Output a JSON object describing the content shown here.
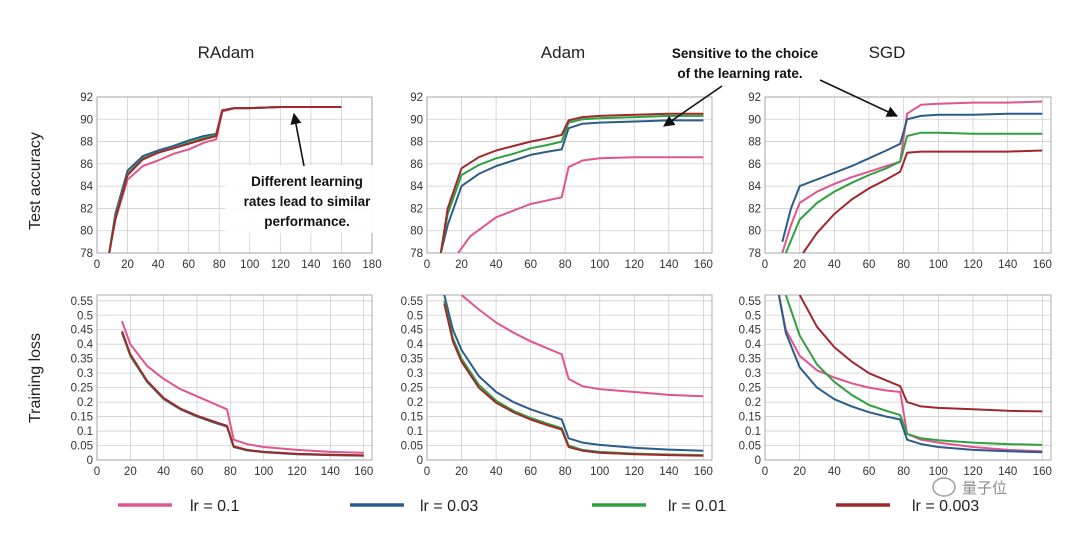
{
  "ylabels": {
    "top": "Test accuracy",
    "bottom": "Training loss"
  },
  "legend": [
    {
      "label": "lr = 0.1",
      "color": "#e05590"
    },
    {
      "label": "lr = 0.03",
      "color": "#2c5d8a"
    },
    {
      "label": "lr = 0.01",
      "color": "#30a040"
    },
    {
      "label": "lr = 0.003",
      "color": "#a0282c"
    }
  ],
  "watermark": "量子位",
  "annotations": [
    {
      "lines": [
        "Different learning",
        "rates lead to similar",
        "performance."
      ]
    },
    {
      "lines": [
        "Sensitive to the choice",
        "of the learning rate."
      ]
    }
  ],
  "chart_data": [
    {
      "type": "line",
      "title": "RAdam",
      "xlabel": "",
      "ylabel": "Test accuracy",
      "xlim": [
        0,
        180
      ],
      "ylim": [
        78,
        92
      ],
      "xticks": [
        0,
        20,
        40,
        60,
        80,
        100,
        120,
        140,
        160,
        180
      ],
      "yticks": [
        78,
        80,
        82,
        84,
        86,
        88,
        90,
        92
      ],
      "grid": true,
      "series": [
        {
          "color": "#e05590",
          "x": [
            8,
            12,
            20,
            30,
            40,
            50,
            60,
            70,
            78,
            82,
            90,
            100,
            120,
            140,
            160
          ],
          "y": [
            78,
            81,
            84.6,
            85.8,
            86.3,
            86.9,
            87.3,
            87.9,
            88.2,
            90.7,
            91.0,
            91.0,
            91.1,
            91.1,
            91.1
          ]
        },
        {
          "color": "#2c5d8a",
          "x": [
            8,
            12,
            20,
            30,
            40,
            50,
            60,
            70,
            78,
            82,
            90,
            100,
            120,
            140,
            160
          ],
          "y": [
            78,
            81.5,
            85.4,
            86.7,
            87.2,
            87.6,
            88.1,
            88.5,
            88.7,
            90.8,
            91.0,
            91.0,
            91.1,
            91.1,
            91.1
          ]
        },
        {
          "color": "#30a040",
          "x": [
            8,
            12,
            20,
            30,
            40,
            50,
            60,
            70,
            78,
            82,
            90,
            100,
            120,
            140,
            160
          ],
          "y": [
            78,
            81.2,
            85.1,
            86.5,
            87.0,
            87.4,
            87.9,
            88.3,
            88.6,
            90.8,
            91.0,
            91.0,
            91.1,
            91.1,
            91.1
          ]
        },
        {
          "color": "#a0282c",
          "x": [
            8,
            12,
            20,
            30,
            40,
            50,
            60,
            70,
            78,
            82,
            90,
            100,
            120,
            140,
            160
          ],
          "y": [
            78,
            81.0,
            85.0,
            86.4,
            87.0,
            87.4,
            87.8,
            88.2,
            88.5,
            90.8,
            91.0,
            91.0,
            91.1,
            91.1,
            91.1
          ]
        }
      ]
    },
    {
      "type": "line",
      "title": "Adam",
      "xlabel": "",
      "ylabel": "",
      "xlim": [
        0,
        165
      ],
      "ylim": [
        78,
        92
      ],
      "xticks": [
        0,
        20,
        40,
        60,
        80,
        100,
        120,
        140,
        160
      ],
      "yticks": [
        78,
        80,
        82,
        84,
        86,
        88,
        90,
        92
      ],
      "grid": true,
      "series": [
        {
          "color": "#e05590",
          "x": [
            18,
            25,
            40,
            60,
            78,
            82,
            90,
            100,
            120,
            140,
            160
          ],
          "y": [
            78,
            79.5,
            81.2,
            82.4,
            83,
            85.7,
            86.3,
            86.5,
            86.6,
            86.6,
            86.6
          ]
        },
        {
          "color": "#2c5d8a",
          "x": [
            8,
            12,
            20,
            30,
            40,
            50,
            60,
            70,
            78,
            82,
            90,
            100,
            120,
            140,
            160
          ],
          "y": [
            78,
            80.5,
            84,
            85.1,
            85.8,
            86.3,
            86.8,
            87.1,
            87.3,
            89.2,
            89.6,
            89.7,
            89.8,
            89.9,
            89.9
          ]
        },
        {
          "color": "#30a040",
          "x": [
            8,
            12,
            20,
            30,
            40,
            50,
            60,
            70,
            78,
            82,
            90,
            100,
            120,
            140,
            160
          ],
          "y": [
            78,
            81.5,
            85,
            85.9,
            86.5,
            86.9,
            87.4,
            87.7,
            88,
            89.7,
            90.0,
            90.1,
            90.2,
            90.3,
            90.3
          ]
        },
        {
          "color": "#a0282c",
          "x": [
            8,
            12,
            20,
            30,
            40,
            50,
            60,
            70,
            78,
            82,
            90,
            100,
            120,
            140,
            160
          ],
          "y": [
            78,
            82,
            85.6,
            86.6,
            87.2,
            87.6,
            88.0,
            88.3,
            88.6,
            89.9,
            90.2,
            90.3,
            90.4,
            90.5,
            90.5
          ]
        }
      ]
    },
    {
      "type": "line",
      "title": "SGD",
      "xlabel": "",
      "ylabel": "",
      "xlim": [
        0,
        165
      ],
      "ylim": [
        78,
        92
      ],
      "xticks": [
        0,
        20,
        40,
        60,
        80,
        100,
        120,
        140,
        160
      ],
      "yticks": [
        78,
        80,
        82,
        84,
        86,
        88,
        90,
        92
      ],
      "grid": true,
      "series": [
        {
          "color": "#e05590",
          "x": [
            10,
            15,
            20,
            30,
            40,
            50,
            60,
            70,
            78,
            82,
            90,
            100,
            120,
            140,
            160
          ],
          "y": [
            78,
            80.5,
            82.5,
            83.5,
            84.2,
            84.8,
            85.3,
            85.8,
            86.2,
            90.5,
            91.3,
            91.4,
            91.5,
            91.5,
            91.6
          ]
        },
        {
          "color": "#2c5d8a",
          "x": [
            10,
            15,
            20,
            30,
            40,
            50,
            60,
            70,
            78,
            82,
            90,
            100,
            120,
            140,
            160
          ],
          "y": [
            79,
            82,
            84,
            84.6,
            85.2,
            85.8,
            86.5,
            87.2,
            87.8,
            90.0,
            90.3,
            90.4,
            90.4,
            90.5,
            90.5
          ]
        },
        {
          "color": "#30a040",
          "x": [
            12,
            20,
            30,
            40,
            50,
            60,
            70,
            78,
            82,
            90,
            100,
            120,
            140,
            160
          ],
          "y": [
            78,
            81,
            82.5,
            83.5,
            84.3,
            85.0,
            85.6,
            86.2,
            88.5,
            88.8,
            88.8,
            88.7,
            88.7,
            88.7
          ]
        },
        {
          "color": "#a0282c",
          "x": [
            22,
            30,
            40,
            50,
            60,
            70,
            78,
            82,
            90,
            100,
            120,
            140,
            160
          ],
          "y": [
            78,
            79.8,
            81.5,
            82.8,
            83.8,
            84.6,
            85.3,
            87.0,
            87.1,
            87.1,
            87.1,
            87.1,
            87.2
          ]
        }
      ]
    },
    {
      "type": "line",
      "title": "",
      "xlabel": "",
      "ylabel": "Training loss",
      "xlim": [
        0,
        165
      ],
      "ylim": [
        0,
        0.57
      ],
      "xticks": [
        0,
        20,
        40,
        60,
        80,
        100,
        120,
        140,
        160
      ],
      "yticks": [
        0,
        0.05,
        0.1,
        0.15,
        0.2,
        0.25,
        0.3,
        0.35,
        0.4,
        0.45,
        0.5,
        0.55
      ],
      "grid": true,
      "series": [
        {
          "color": "#e05590",
          "x": [
            15,
            20,
            30,
            40,
            50,
            60,
            70,
            78,
            82,
            90,
            100,
            120,
            140,
            160
          ],
          "y": [
            0.48,
            0.4,
            0.325,
            0.28,
            0.245,
            0.22,
            0.195,
            0.175,
            0.07,
            0.055,
            0.045,
            0.035,
            0.028,
            0.025
          ]
        },
        {
          "color": "#2c5d8a",
          "x": [
            15,
            20,
            30,
            40,
            50,
            60,
            70,
            78,
            82,
            90,
            100,
            120,
            140,
            160
          ],
          "y": [
            0.44,
            0.36,
            0.27,
            0.21,
            0.175,
            0.15,
            0.13,
            0.115,
            0.045,
            0.033,
            0.027,
            0.02,
            0.017,
            0.015
          ]
        },
        {
          "color": "#30a040",
          "x": [
            15,
            20,
            30,
            40,
            50,
            60,
            70,
            78,
            82,
            90,
            100,
            120,
            140,
            160
          ],
          "y": [
            0.44,
            0.36,
            0.272,
            0.212,
            0.177,
            0.152,
            0.132,
            0.117,
            0.046,
            0.034,
            0.028,
            0.021,
            0.018,
            0.016
          ]
        },
        {
          "color": "#a0282c",
          "x": [
            15,
            20,
            30,
            40,
            50,
            60,
            70,
            78,
            82,
            90,
            100,
            120,
            140,
            160
          ],
          "y": [
            0.445,
            0.365,
            0.274,
            0.214,
            0.178,
            0.153,
            0.133,
            0.118,
            0.047,
            0.035,
            0.028,
            0.021,
            0.018,
            0.016
          ]
        }
      ]
    },
    {
      "type": "line",
      "title": "",
      "xlabel": "",
      "ylabel": "",
      "xlim": [
        0,
        165
      ],
      "ylim": [
        0,
        0.57
      ],
      "xticks": [
        0,
        20,
        40,
        60,
        80,
        100,
        120,
        140,
        160
      ],
      "yticks": [
        0,
        0.05,
        0.1,
        0.15,
        0.2,
        0.25,
        0.3,
        0.35,
        0.4,
        0.45,
        0.5,
        0.55
      ],
      "grid": true,
      "series": [
        {
          "color": "#e05590",
          "x": [
            20,
            30,
            40,
            50,
            60,
            70,
            78,
            82,
            90,
            100,
            120,
            140,
            160
          ],
          "y": [
            0.57,
            0.52,
            0.475,
            0.44,
            0.41,
            0.385,
            0.365,
            0.28,
            0.255,
            0.245,
            0.235,
            0.225,
            0.22
          ]
        },
        {
          "color": "#2c5d8a",
          "x": [
            10,
            15,
            20,
            30,
            40,
            50,
            60,
            70,
            78,
            82,
            90,
            100,
            120,
            140,
            160
          ],
          "y": [
            0.57,
            0.45,
            0.38,
            0.29,
            0.235,
            0.2,
            0.175,
            0.155,
            0.14,
            0.075,
            0.06,
            0.052,
            0.042,
            0.036,
            0.032
          ]
        },
        {
          "color": "#30a040",
          "x": [
            10,
            15,
            20,
            30,
            40,
            50,
            60,
            70,
            78,
            82,
            90,
            100,
            120,
            140,
            160
          ],
          "y": [
            0.55,
            0.42,
            0.35,
            0.26,
            0.205,
            0.17,
            0.145,
            0.125,
            0.11,
            0.05,
            0.035,
            0.028,
            0.022,
            0.019,
            0.017
          ]
        },
        {
          "color": "#a0282c",
          "x": [
            10,
            15,
            20,
            30,
            40,
            50,
            60,
            70,
            78,
            82,
            90,
            100,
            120,
            140,
            160
          ],
          "y": [
            0.54,
            0.41,
            0.34,
            0.25,
            0.198,
            0.165,
            0.14,
            0.12,
            0.105,
            0.045,
            0.032,
            0.025,
            0.02,
            0.017,
            0.015
          ]
        }
      ]
    },
    {
      "type": "line",
      "title": "",
      "xlabel": "",
      "ylabel": "",
      "xlim": [
        0,
        165
      ],
      "ylim": [
        0,
        0.57
      ],
      "xticks": [
        0,
        20,
        40,
        60,
        80,
        100,
        120,
        140,
        160
      ],
      "yticks": [
        0,
        0.05,
        0.1,
        0.15,
        0.2,
        0.25,
        0.3,
        0.35,
        0.4,
        0.45,
        0.5,
        0.55
      ],
      "grid": true,
      "series": [
        {
          "color": "#e05590",
          "x": [
            8,
            12,
            20,
            30,
            40,
            50,
            60,
            70,
            78,
            82,
            90,
            100,
            120,
            140,
            160
          ],
          "y": [
            0.57,
            0.45,
            0.36,
            0.31,
            0.285,
            0.265,
            0.25,
            0.24,
            0.235,
            0.09,
            0.07,
            0.06,
            0.045,
            0.035,
            0.03
          ]
        },
        {
          "color": "#2c5d8a",
          "x": [
            8,
            12,
            20,
            30,
            40,
            50,
            60,
            70,
            78,
            82,
            90,
            100,
            120,
            140,
            160
          ],
          "y": [
            0.57,
            0.44,
            0.32,
            0.25,
            0.21,
            0.185,
            0.165,
            0.15,
            0.14,
            0.07,
            0.055,
            0.045,
            0.035,
            0.03,
            0.027
          ]
        },
        {
          "color": "#30a040",
          "x": [
            12,
            20,
            30,
            40,
            50,
            60,
            70,
            78,
            82,
            90,
            100,
            120,
            140,
            160
          ],
          "y": [
            0.57,
            0.43,
            0.33,
            0.27,
            0.225,
            0.19,
            0.17,
            0.155,
            0.09,
            0.075,
            0.068,
            0.06,
            0.055,
            0.052
          ]
        },
        {
          "color": "#a0282c",
          "x": [
            20,
            30,
            40,
            50,
            60,
            70,
            78,
            82,
            90,
            100,
            120,
            140,
            160
          ],
          "y": [
            0.57,
            0.46,
            0.39,
            0.34,
            0.3,
            0.275,
            0.255,
            0.2,
            0.185,
            0.18,
            0.175,
            0.17,
            0.168
          ]
        }
      ]
    }
  ]
}
